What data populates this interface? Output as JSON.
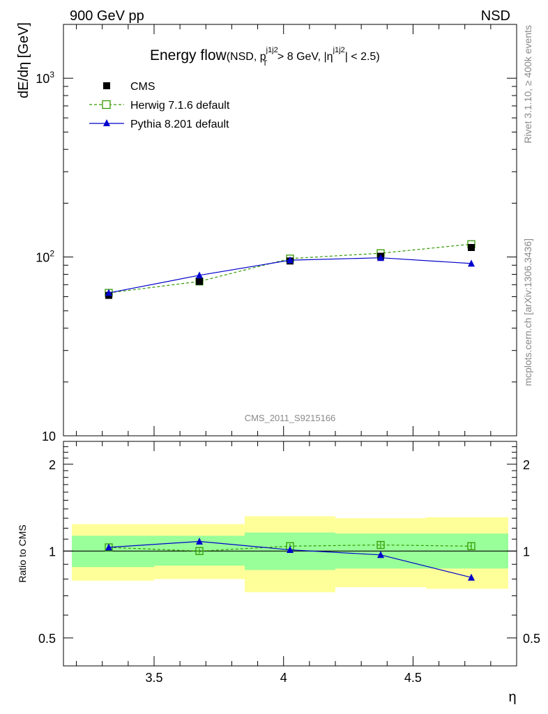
{
  "header": {
    "left": "900 GeV pp",
    "right": "NSD"
  },
  "side_labels": {
    "rivet": "Rivet 3.1.10, ≥ 400k events",
    "mcplots": "mcplots.cern.ch [arXiv:1306.3436]"
  },
  "watermark": "CMS_2011_S9215166",
  "chart_data": [
    {
      "type": "line",
      "title": "Energy flow",
      "title_detail": {
        "prefix": "(NSD, p",
        "sup1": "j1j2",
        "sub1": "T",
        "mid": " > 8 GeV, |η",
        "sup2": "j1j2",
        "suffix": "| < 2.5)"
      },
      "ylabel": "dE/dη [GeV]",
      "yscale": "log",
      "ylim": [
        10,
        2000
      ],
      "xlim": [
        3.15,
        4.9
      ],
      "y_ticks": [
        {
          "value": 10,
          "label": "10"
        },
        {
          "value": 100,
          "label": "10^2"
        },
        {
          "value": 1000,
          "label": "10^3"
        }
      ],
      "x": [
        3.325,
        3.675,
        4.025,
        4.375,
        4.725
      ],
      "series": [
        {
          "name": "CMS",
          "color": "#000000",
          "marker": "square-filled",
          "line": "none",
          "values": [
            61,
            73,
            95,
            101,
            113
          ]
        },
        {
          "name": "Herwig 7.1.6 default",
          "color": "#339900",
          "marker": "square-open",
          "line": "dashed",
          "values": [
            63,
            73,
            98,
            105,
            118
          ]
        },
        {
          "name": "Pythia 8.201 default",
          "color": "#0000cc",
          "marker": "triangle-filled",
          "line": "solid",
          "values": [
            63,
            79,
            96,
            99,
            92
          ]
        }
      ],
      "legend_placement": "top-left"
    },
    {
      "type": "line",
      "ylabel": "Ratio to CMS",
      "xlabel": "η",
      "yscale": "log",
      "ylim": [
        0.4,
        2.4
      ],
      "xlim": [
        3.15,
        4.9
      ],
      "x_ticks": [
        {
          "value": 3.5,
          "label": "3.5"
        },
        {
          "value": 4.0,
          "label": "4"
        },
        {
          "value": 4.5,
          "label": "4.5"
        }
      ],
      "y_ticks": [
        {
          "value": 0.5,
          "label": "0.5"
        },
        {
          "value": 1,
          "label": "1"
        },
        {
          "value": 2,
          "label": "2"
        }
      ],
      "bins": [
        {
          "x_low": 3.15,
          "x_high": 3.5,
          "band_inner": [
            0.88,
            1.13
          ],
          "band_outer": [
            0.79,
            1.24
          ]
        },
        {
          "x_low": 3.5,
          "x_high": 3.85,
          "band_inner": [
            0.89,
            1.13
          ],
          "band_outer": [
            0.8,
            1.24
          ]
        },
        {
          "x_low": 3.85,
          "x_high": 4.2,
          "band_inner": [
            0.86,
            1.16
          ],
          "band_outer": [
            0.72,
            1.32
          ]
        },
        {
          "x_low": 4.2,
          "x_high": 4.55,
          "band_inner": [
            0.87,
            1.15
          ],
          "band_outer": [
            0.75,
            1.3
          ]
        },
        {
          "x_low": 4.55,
          "x_high": 4.9,
          "band_inner": [
            0.87,
            1.15
          ],
          "band_outer": [
            0.74,
            1.31
          ]
        }
      ],
      "x": [
        3.325,
        3.675,
        4.025,
        4.375,
        4.725
      ],
      "series": [
        {
          "name": "Herwig 7.1.6 default",
          "color": "#339900",
          "marker": "square-open",
          "line": "dashed",
          "values": [
            1.03,
            1.0,
            1.04,
            1.05,
            1.04
          ],
          "errors": [
            0.02,
            0.02,
            0.02,
            0.03,
            0.03
          ]
        },
        {
          "name": "Pythia 8.201 default",
          "color": "#0000cc",
          "marker": "triangle-filled",
          "line": "solid",
          "values": [
            1.03,
            1.08,
            1.01,
            0.97,
            0.81
          ]
        }
      ],
      "colors": {
        "band_inner": "#99ff99",
        "band_outer": "#ffff99"
      }
    }
  ]
}
